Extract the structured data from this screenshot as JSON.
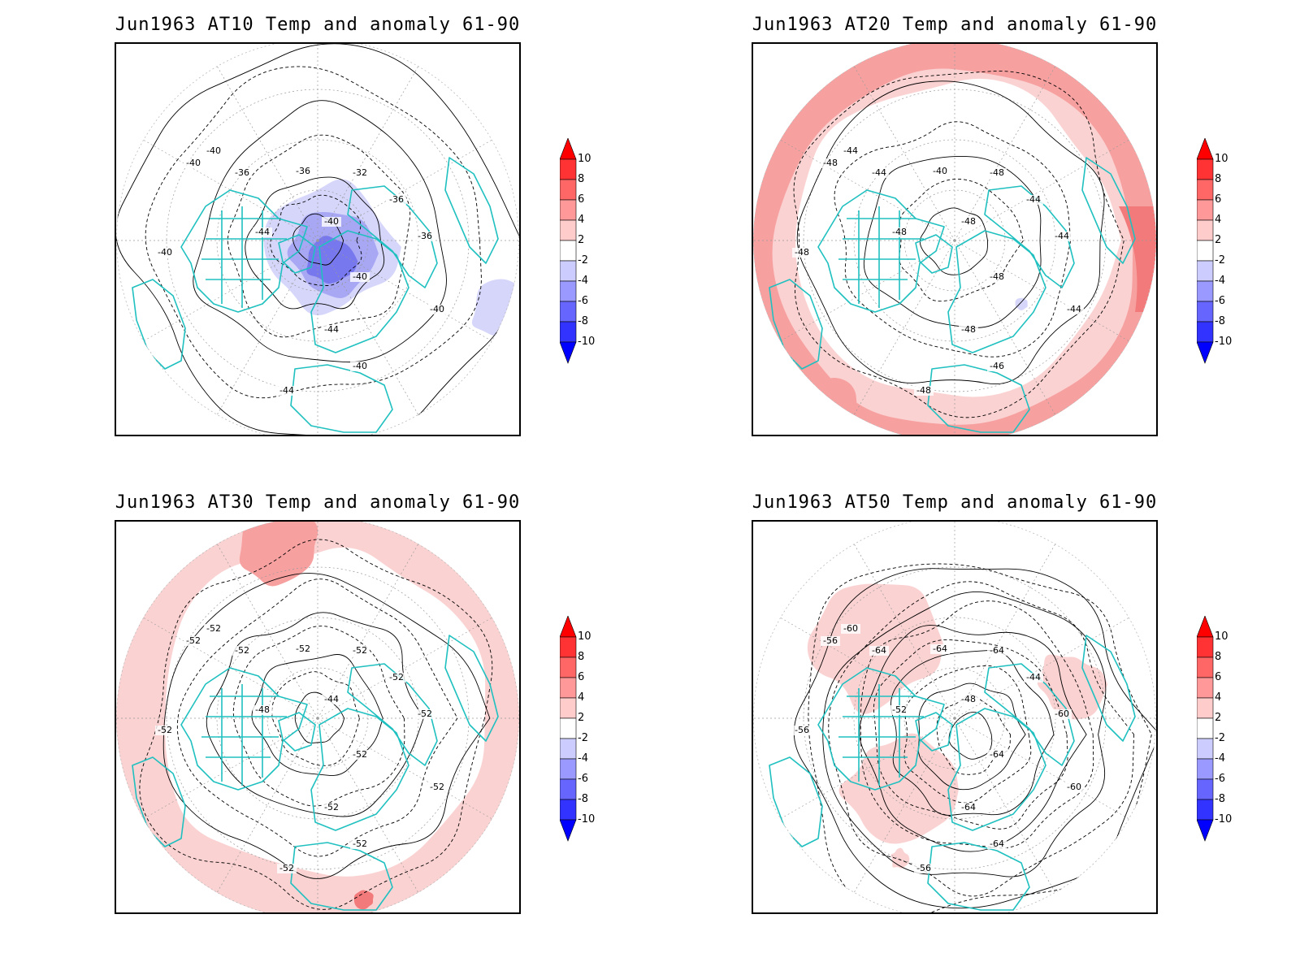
{
  "panels": [
    {
      "id": "at10",
      "title": "Jun1963 AT10 Temp and anomaly 61-90",
      "anomaly": "cold-polar",
      "contour_labels": [
        "-40",
        "-40",
        "-36",
        "-36",
        "-32",
        "-36",
        "-40",
        "-44",
        "-40",
        "-36",
        "-40",
        "-44",
        "-40",
        "-40",
        "-44"
      ]
    },
    {
      "id": "at20",
      "title": "Jun1963 AT20 Temp and anomaly 61-90",
      "anomaly": "warm-ring",
      "contour_labels": [
        "-44",
        "-48",
        "-44",
        "-40",
        "-48",
        "-44",
        "-48",
        "-48",
        "-48",
        "-44",
        "-48",
        "-48",
        "-46",
        "-44",
        "-48"
      ]
    },
    {
      "id": "at30",
      "title": "Jun1963 AT30 Temp and anomaly 61-90",
      "anomaly": "weak-warm-ring",
      "contour_labels": [
        "-52",
        "-52",
        "-52",
        "-52",
        "-52",
        "-52",
        "-44",
        "-48",
        "-52",
        "-52",
        "-52",
        "-52",
        "-52",
        "-52",
        "-52"
      ]
    },
    {
      "id": "at50",
      "title": "Jun1963 AT50 Temp and anomaly 61-90",
      "anomaly": "warm-patches",
      "contour_labels": [
        "-60",
        "-56",
        "-64",
        "-64",
        "-64",
        "-44",
        "-48",
        "-52",
        "-56",
        "-60",
        "-64",
        "-64",
        "-64",
        "-60",
        "-56"
      ]
    }
  ],
  "colorbar": {
    "labels": [
      "10",
      "8",
      "6",
      "4",
      "2",
      "-2",
      "-4",
      "-6",
      "-8",
      "-10"
    ],
    "colors": [
      "#ff0000",
      "#ff3333",
      "#ff6666",
      "#ff9999",
      "#ffcccc",
      "#ffffff",
      "#ccccff",
      "#9999ff",
      "#6666ff",
      "#3333ff",
      "#0000ff"
    ]
  },
  "map_colors": {
    "coast": "#20c0c0",
    "warm1": "#fbd2d2",
    "warm2": "#f7a0a0",
    "warm3": "#f27a7a",
    "cold1": "#d6d6fb",
    "cold2": "#a7a7f4",
    "cold3": "#7878ee"
  }
}
